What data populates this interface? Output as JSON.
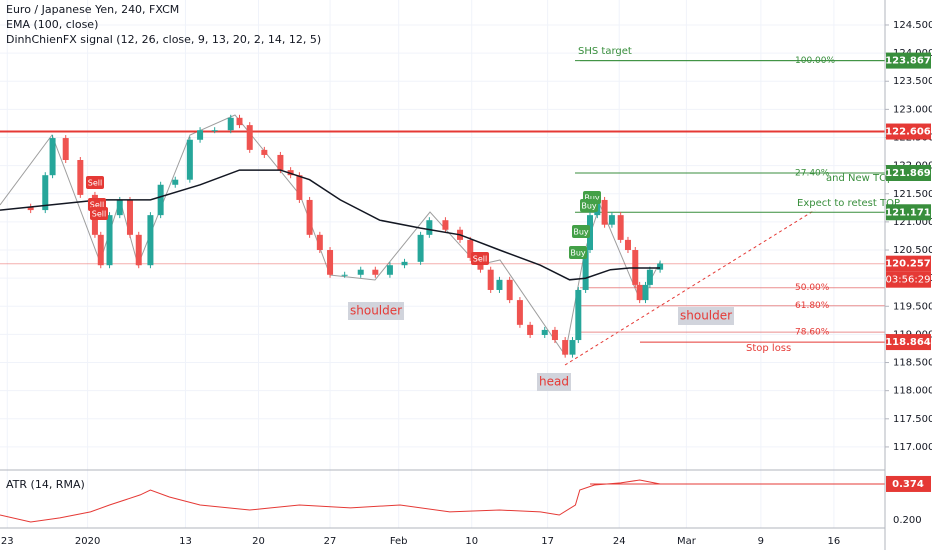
{
  "chart_data": {
    "type": "candlestick",
    "title": "Euro / Japanese Yen, 240, FXCM",
    "indicators": [
      "EMA (100, close)",
      "DinhChienFX signal (12, 26, close, 9, 13, 20, 2, 14, 12, 5)"
    ],
    "xlim": [
      -0.5,
      60.1
    ],
    "xticks": [
      {
        "value": 0,
        "label": "23"
      },
      {
        "value": 5.5,
        "label": "2020"
      },
      {
        "value": 12.2,
        "label": "13"
      },
      {
        "value": 17.2,
        "label": "20"
      },
      {
        "value": 22.1,
        "label": "27"
      },
      {
        "value": 26.8,
        "label": "Feb"
      },
      {
        "value": 31.8,
        "label": "10"
      },
      {
        "value": 37,
        "label": "17"
      },
      {
        "value": 41.9,
        "label": "24"
      },
      {
        "value": 46.5,
        "label": "Mar"
      },
      {
        "value": 51.6,
        "label": "9"
      },
      {
        "value": 56.6,
        "label": "16"
      }
    ],
    "ylim": [
      116.59,
      124.944
    ],
    "yticks": [
      {
        "value": 117,
        "label": "117.000"
      },
      {
        "value": 117.5,
        "label": "117.500"
      },
      {
        "value": 118,
        "label": "118.000"
      },
      {
        "value": 118.5,
        "label": "118.500"
      },
      {
        "value": 119,
        "label": "119.000"
      },
      {
        "value": 119.5,
        "label": "119.500"
      },
      {
        "value": 120,
        "label": "120.000"
      },
      {
        "value": 120.5,
        "label": "120.500"
      },
      {
        "value": 121,
        "label": "121.000"
      },
      {
        "value": 121.5,
        "label": "121.500"
      },
      {
        "value": 122,
        "label": "122.000"
      },
      {
        "value": 122.5,
        "label": "122.500"
      },
      {
        "value": 123,
        "label": "123.000"
      },
      {
        "value": 123.5,
        "label": "123.500"
      },
      {
        "value": 124,
        "label": "124.000"
      },
      {
        "value": 124.5,
        "label": "124.500"
      }
    ],
    "grid": true,
    "up_color": "#26a69a",
    "down_color": "#ef5350",
    "price": {
      "x": [
        -0.5,
        1.6,
        2.6,
        3.1,
        4.0,
        5.0,
        6.0,
        6.4,
        7.0,
        7.7,
        8.4,
        9.0,
        9.8,
        10.5,
        11.5,
        12.5,
        13.2,
        14.2,
        15.3,
        15.9,
        16.6,
        17.6,
        18.7,
        19.4,
        20.0,
        20.7,
        21.4,
        22.1,
        23.1,
        24.2,
        25.2,
        26.2,
        27.2,
        28.3,
        28.9,
        30.0,
        31.0,
        31.7,
        32.4,
        33.1,
        33.7,
        34.4,
        35.1,
        35.8,
        36.8,
        37.5,
        38.2,
        38.7,
        39.1,
        39.6,
        39.9,
        40.4,
        40.9,
        41.4,
        42.0,
        42.5,
        43.0,
        43.3,
        43.7,
        44.0,
        44.7
      ],
      "values": [
        121.27,
        121.21,
        121.83,
        122.49,
        122.1,
        121.48,
        120.77,
        120.23,
        121.12,
        121.39,
        120.77,
        120.23,
        121.12,
        121.66,
        121.75,
        122.46,
        122.63,
        122.63,
        122.85,
        122.72,
        122.28,
        122.19,
        121.92,
        121.83,
        121.39,
        120.77,
        120.5,
        120.06,
        120.06,
        120.15,
        120.06,
        120.23,
        120.29,
        120.77,
        121.03,
        120.86,
        120.68,
        120.36,
        120.15,
        119.79,
        119.97,
        119.61,
        119.17,
        118.99,
        119.08,
        118.9,
        118.64,
        118.9,
        119.79,
        120.5,
        121.12,
        121.39,
        120.95,
        121.12,
        120.68,
        120.5,
        119.88,
        119.61,
        119.88,
        120.15,
        120.26
      ]
    },
    "ema": {
      "name": "EMA (100, close)",
      "color": "#131722",
      "x": [
        -0.5,
        2.9,
        6.3,
        9.8,
        13.2,
        15.9,
        18.7,
        20.7,
        22.8,
        25.5,
        28.3,
        31.0,
        33.7,
        36.5,
        38.5,
        39.6,
        41.3,
        42.6,
        44.7
      ],
      "values": [
        121.21,
        121.3,
        121.39,
        121.39,
        121.66,
        121.92,
        121.92,
        121.75,
        121.39,
        121.03,
        120.89,
        120.77,
        120.5,
        120.23,
        119.97,
        120.0,
        120.15,
        120.18,
        120.18
      ]
    },
    "price_lines": [
      {
        "price": 123.867,
        "color": "#388e3c"
      },
      {
        "price": 122.606,
        "color": "#e53935"
      },
      {
        "price": 121.869,
        "color": "#388e3c"
      },
      {
        "price": 121.171,
        "color": "#388e3c"
      },
      {
        "price": 120.257,
        "color": "#e53935"
      },
      {
        "price": 118.864,
        "color": "#e53935"
      }
    ],
    "countdown": "03:56:29",
    "fib_levels": [
      {
        "price": 123.867,
        "level": {
          "value": 100,
          "label": "100.00%"
        }
      },
      {
        "price": 121.869,
        "level": {
          "value": 27.4,
          "label": "27.40%"
        }
      },
      {
        "price": 119.83,
        "level": {
          "value": 50,
          "label": "50.00%"
        }
      },
      {
        "price": 119.51,
        "level": {
          "value": 61.8,
          "label": "61.80%"
        }
      },
      {
        "price": 119.04,
        "level": {
          "value": 78.6,
          "label": "78.60%"
        }
      }
    ],
    "notes": [
      "SHS target",
      "and New TOp",
      "Expect to retest TOP",
      "Stop loss",
      "shoulder",
      "head",
      "shoulder"
    ],
    "signals": [
      "Sell",
      "Sell",
      "Sell",
      "Sell",
      "Buy",
      "Buy",
      "Buy",
      "Buy"
    ],
    "atr": {
      "name": "ATR (14, RMA)",
      "color": "#e53935",
      "ylim": [
        0.161,
        0.427
      ],
      "yticks": [
        {
          "value": 0.2,
          "label": "0.200"
        }
      ],
      "x": [
        -0.5,
        1.6,
        3.6,
        5.7,
        7.0,
        9.1,
        9.8,
        11.1,
        13.2,
        16.6,
        20.0,
        23.5,
        26.9,
        30.3,
        33.7,
        36.5,
        37.8,
        38.9,
        39.2,
        40.2,
        42.0,
        43.3,
        44.7
      ],
      "values": [
        0.224,
        0.19,
        0.21,
        0.239,
        0.272,
        0.321,
        0.345,
        0.311,
        0.272,
        0.248,
        0.272,
        0.258,
        0.272,
        0.239,
        0.248,
        0.239,
        0.224,
        0.272,
        0.345,
        0.369,
        0.379,
        0.393,
        0.374
      ]
    }
  }
}
